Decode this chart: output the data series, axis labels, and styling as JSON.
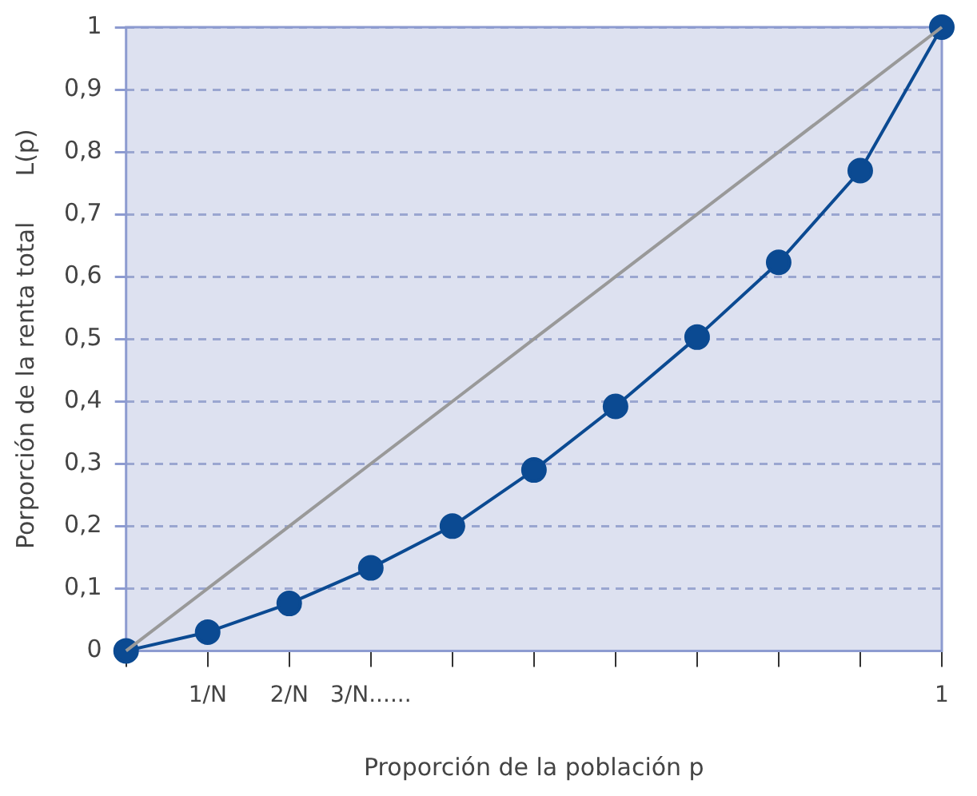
{
  "chart_data": {
    "type": "line",
    "xlabel": "Proporción de la población p",
    "ylabel": "Porporción de la renta total      L(p)",
    "categories": [
      null,
      "1/N",
      "2/N",
      "3/N......",
      null,
      null,
      null,
      null,
      null,
      null,
      "1"
    ],
    "series": [
      {
        "color": "#999999",
        "values": [
          0,
          0.1,
          0.2,
          0.3,
          0.4,
          0.5,
          0.6,
          0.7,
          0.8,
          0.9,
          1
        ],
        "marker": "none"
      },
      {
        "color": "#0b4a92",
        "values": [
          0,
          0.03,
          0.076,
          0.133,
          0.2,
          0.29,
          0.392,
          0.503,
          0.623,
          0.77,
          1
        ],
        "marker": "circle"
      }
    ],
    "ylim": [
      0,
      1
    ],
    "yticks": [
      {
        "value": 0,
        "label": "0"
      },
      {
        "value": 0.1,
        "label": "0,1"
      },
      {
        "value": 0.2,
        "label": "0,2"
      },
      {
        "value": 0.3,
        "label": "0,3"
      },
      {
        "value": 0.4,
        "label": "0,4"
      },
      {
        "value": 0.5,
        "label": "0,5"
      },
      {
        "value": 0.6,
        "label": "0,6"
      },
      {
        "value": 0.7,
        "label": "0,7"
      },
      {
        "value": 0.8,
        "label": "0,8"
      },
      {
        "value": 0.9,
        "label": "0,9"
      },
      {
        "value": 1,
        "label": "1"
      }
    ],
    "grid": "y",
    "legend": false
  }
}
